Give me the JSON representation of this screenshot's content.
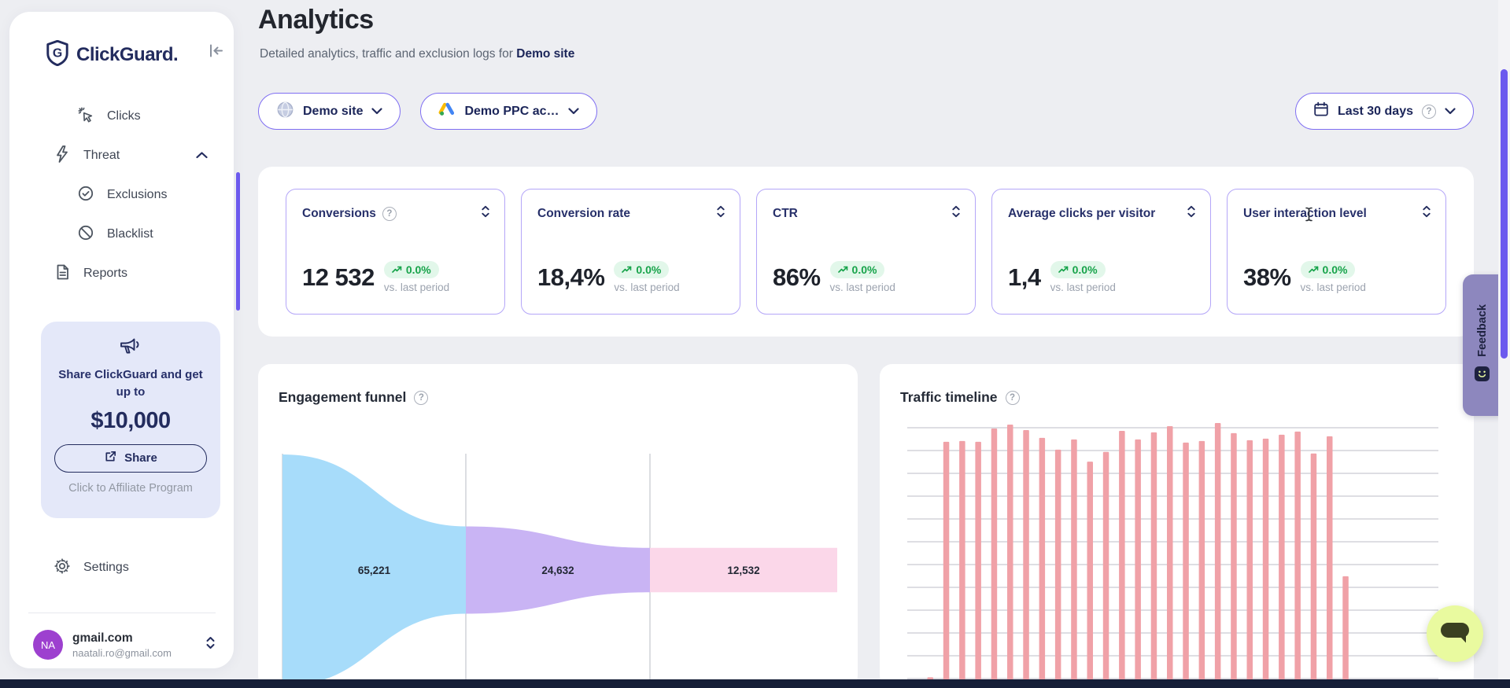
{
  "sidebar": {
    "brand": "ClickGuard.",
    "nav": [
      {
        "label": "Clicks"
      },
      {
        "label": "Threat"
      },
      {
        "label": "Exclusions"
      },
      {
        "label": "Blacklist"
      },
      {
        "label": "Reports"
      }
    ],
    "promo": {
      "line1": "Share ClickGuard and get up to",
      "amount": "$10,000",
      "share_label": "Share",
      "affiliate_label": "Click to Affiliate Program"
    },
    "settings_label": "Settings",
    "user": {
      "initials": "NA",
      "name": "gmail.com",
      "email": "naatali.ro@gmail.com"
    }
  },
  "header": {
    "title": "Analytics",
    "subtitle_prefix": "Detailed analytics, traffic and exclusion logs for ",
    "site_name": "Demo site"
  },
  "filters": {
    "site": "Demo site",
    "account": "Demo PPC ac…",
    "date_range": "Last 30 days"
  },
  "stats": {
    "delta": "0.0%",
    "sub": "vs. last period",
    "cards": [
      {
        "title": "Conversions",
        "value": "12 532"
      },
      {
        "title": "Conversion rate",
        "value": "18,4%"
      },
      {
        "title": "CTR",
        "value": "86%"
      },
      {
        "title": "Average clicks per visitor",
        "value": "1,4"
      },
      {
        "title": "User interaction level",
        "value": "38%"
      }
    ]
  },
  "feedback_label": "Feedback",
  "colors": {
    "accent_indigo": "#6C5AEE",
    "navy": "#232C5E",
    "badge_green": "#17A34A",
    "bar_pink": "#F0A1A7",
    "lime": "#E9FA9F",
    "avatar_purple": "#9D40CF"
  },
  "chart_data": [
    {
      "type": "funnel",
      "title": "Engagement funnel",
      "stages": [
        {
          "label": "65,221",
          "value": 65221,
          "color": "#A7DCFA"
        },
        {
          "label": "24,632",
          "value": 24632,
          "color": "#C9B4F4"
        },
        {
          "label": "12,532",
          "value": 12532,
          "color": "#FBD7E9"
        }
      ]
    },
    {
      "type": "bar",
      "title": "Traffic timeline",
      "ylabel": "",
      "xlabel": "",
      "grid": true,
      "bar_color": "#F0A1A7",
      "note": "bottom axis cut off by viewport; values are % of tallest bar",
      "values_pct": [
        2,
        92.2,
        92.5,
        92.2,
        97.3,
        98.8,
        96.7,
        93.7,
        89.2,
        93.1,
        84.6,
        88.3,
        96.4,
        93.1,
        95.8,
        98.2,
        91.9,
        92.5,
        99.4,
        95.5,
        92.8,
        93.4,
        94.9,
        96.1,
        87.7,
        94.3,
        40.7
      ]
    }
  ]
}
